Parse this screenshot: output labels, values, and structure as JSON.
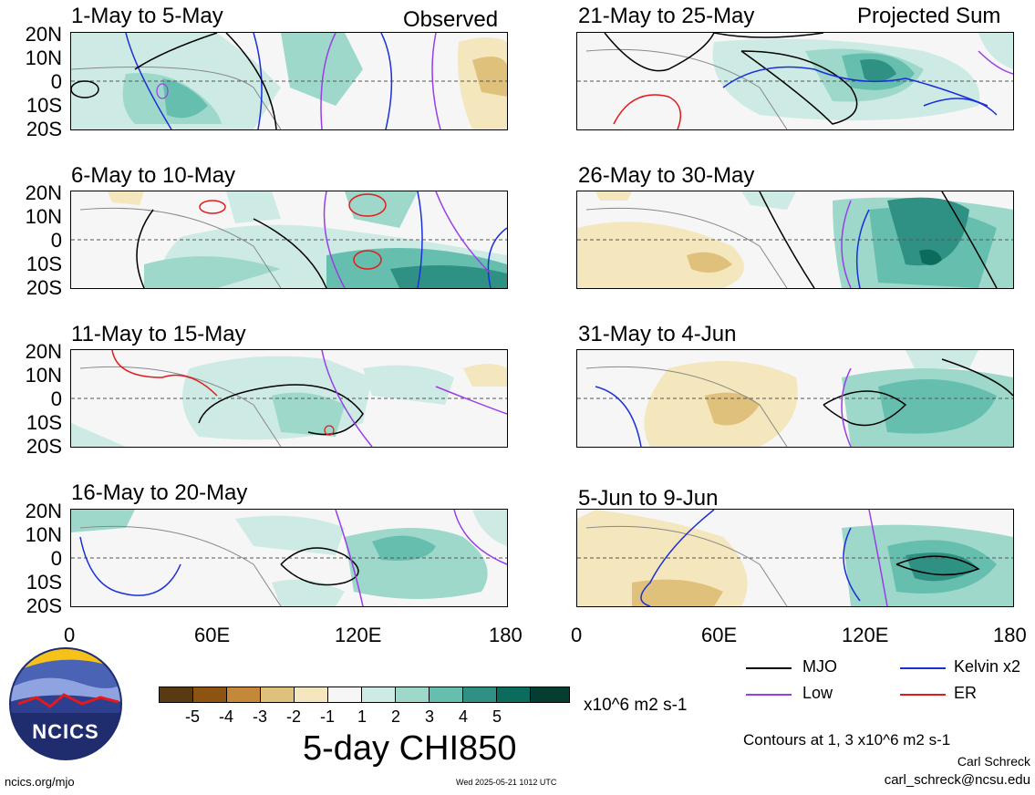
{
  "header": {
    "left_label": "Observed",
    "right_label": "Projected Sum"
  },
  "panels_left": [
    {
      "title": "1-May to 5-May"
    },
    {
      "title": "6-May to 10-May"
    },
    {
      "title": "11-May to 15-May"
    },
    {
      "title": "16-May to 20-May"
    }
  ],
  "panels_right": [
    {
      "title": "21-May to 25-May"
    },
    {
      "title": "26-May to 30-May"
    },
    {
      "title": "31-May to 4-Jun"
    },
    {
      "title": "5-Jun to 9-Jun"
    }
  ],
  "lat_labels": [
    "20N",
    "10N",
    "0",
    "10S",
    "20S"
  ],
  "lon_labels": [
    "0",
    "60E",
    "120E",
    "180"
  ],
  "colorbar": {
    "colors": [
      "#5a3a12",
      "#8c5410",
      "#c48938",
      "#dfc17b",
      "#f4e6bd",
      "#f6f6f6",
      "#cdebe4",
      "#9dd8cb",
      "#66bfae",
      "#2f9183",
      "#0b6b5c",
      "#053d33"
    ],
    "labels": [
      "-5",
      "-4",
      "-3",
      "-2",
      "-1",
      "1",
      "2",
      "3",
      "4",
      "5"
    ],
    "units": "x10^6 m2 s-1",
    "title": "5-day CHI850"
  },
  "legend": {
    "items": [
      {
        "label": "MJO",
        "color": "#000000"
      },
      {
        "label": "Kelvin x2",
        "color": "#1a2fd6"
      },
      {
        "label": "Low",
        "color": "#9a3ee6"
      },
      {
        "label": "ER",
        "color": "#e31a1c"
      }
    ],
    "contours_note": "Contours at 1, 3 x10^6 m2 s-1",
    "author": "Carl Schreck",
    "email": "carl_schreck@ncsu.edu"
  },
  "logo": {
    "text": "NCICS"
  },
  "footer": {
    "url": "ncics.org/mjo",
    "timestamp": "Wed 2025-05-21 1012 UTC"
  }
}
